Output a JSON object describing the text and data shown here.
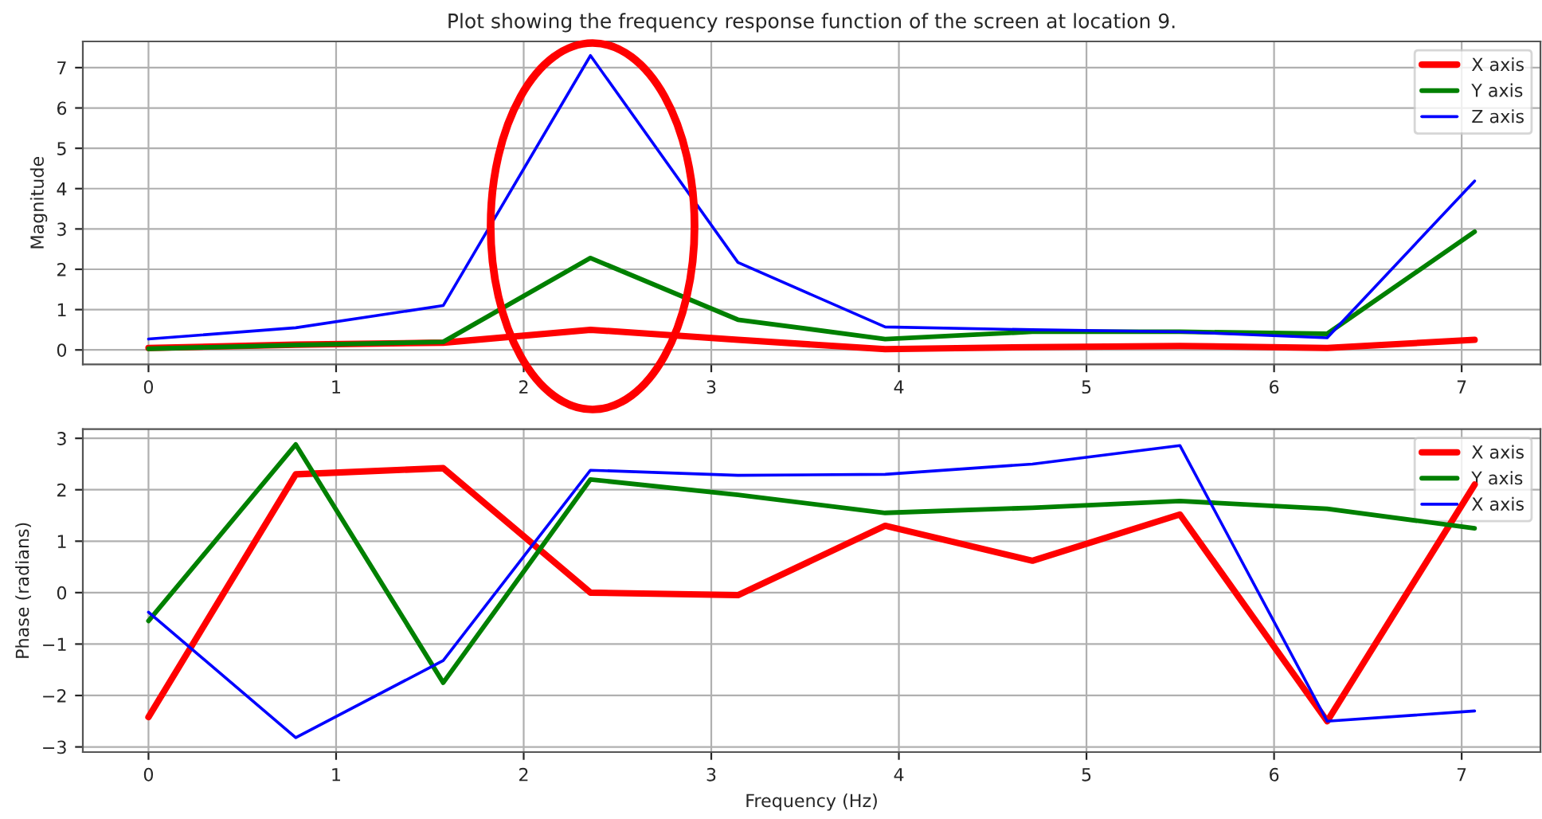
{
  "chart_data": [
    {
      "type": "line",
      "title": "Plot showing the frequency response function of the screen at location 9.",
      "ylabel": "Magnitude",
      "x": [
        0,
        0.785,
        1.571,
        2.356,
        3.142,
        3.927,
        4.712,
        5.498,
        6.283,
        7.069
      ],
      "series": [
        {
          "name": "X axis",
          "color": "#ff0000",
          "values": [
            0.05,
            0.13,
            0.18,
            0.5,
            0.25,
            0.02,
            0.07,
            0.1,
            0.05,
            0.25
          ]
        },
        {
          "name": "Y axis",
          "color": "#008000",
          "values": [
            0.03,
            0.12,
            0.2,
            2.28,
            0.75,
            0.27,
            0.45,
            0.45,
            0.4,
            2.93
          ]
        },
        {
          "name": "Z axis",
          "color": "#0000ff",
          "values": [
            0.27,
            0.55,
            1.1,
            7.3,
            2.17,
            0.57,
            0.5,
            0.45,
            0.3,
            4.19
          ]
        }
      ],
      "xlim": [
        -0.35,
        7.42
      ],
      "xticks": [
        0,
        1,
        2,
        3,
        4,
        5,
        6,
        7
      ],
      "ylim": [
        -0.36,
        7.65
      ],
      "yticks": [
        0,
        1,
        2,
        3,
        4,
        5,
        6,
        7
      ],
      "grid": true,
      "legend": "top right"
    },
    {
      "type": "line",
      "xlabel": "Frequency (Hz)",
      "ylabel": "Phase (radians)",
      "x": [
        0,
        0.785,
        1.571,
        2.356,
        3.142,
        3.927,
        4.712,
        5.498,
        6.283,
        7.069
      ],
      "series": [
        {
          "name": "X axis",
          "color": "#ff0000",
          "values": [
            -2.42,
            2.3,
            2.42,
            0,
            -0.05,
            1.3,
            0.62,
            1.52,
            -2.5,
            2.1
          ]
        },
        {
          "name": "Y axis",
          "color": "#008000",
          "values": [
            -0.55,
            2.88,
            -1.75,
            2.2,
            1.9,
            1.55,
            1.65,
            1.78,
            1.63,
            1.25
          ]
        },
        {
          "name": "X axis",
          "color": "#0000ff",
          "values": [
            -0.38,
            -2.82,
            -1.32,
            2.38,
            2.28,
            2.3,
            2.5,
            2.86,
            -2.5,
            -2.3
          ]
        }
      ],
      "xlim": [
        -0.35,
        7.42
      ],
      "xticks": [
        0,
        1,
        2,
        3,
        4,
        5,
        6,
        7
      ],
      "ylim": [
        -3.1,
        3.18
      ],
      "yticks": [
        {
          "value": -3,
          "label": "−3"
        },
        {
          "value": -2,
          "label": "−2"
        },
        {
          "value": -1,
          "label": "−1"
        },
        0,
        1,
        2,
        3
      ],
      "grid": true,
      "legend": "top right"
    }
  ]
}
